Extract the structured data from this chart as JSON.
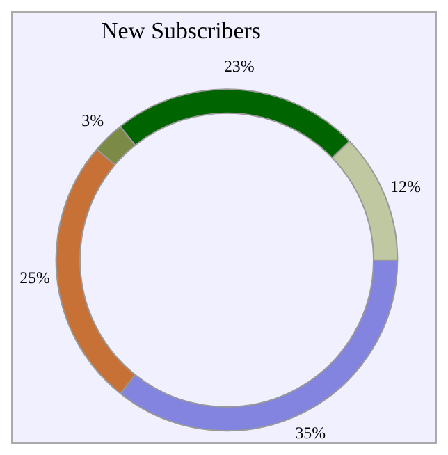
{
  "chart_data": {
    "type": "donut",
    "title": "New Subscribers",
    "categories": [
      null,
      null,
      null,
      null,
      null
    ],
    "values": [
      35,
      25,
      3,
      23,
      12
    ],
    "colors": [
      "#8383e0",
      "#c87137",
      "#7b8b45",
      "#006400",
      "#c0c8a2"
    ],
    "value_labels": [
      "35%",
      "25%",
      "3%",
      "23%",
      "12%"
    ],
    "legend": false
  }
}
